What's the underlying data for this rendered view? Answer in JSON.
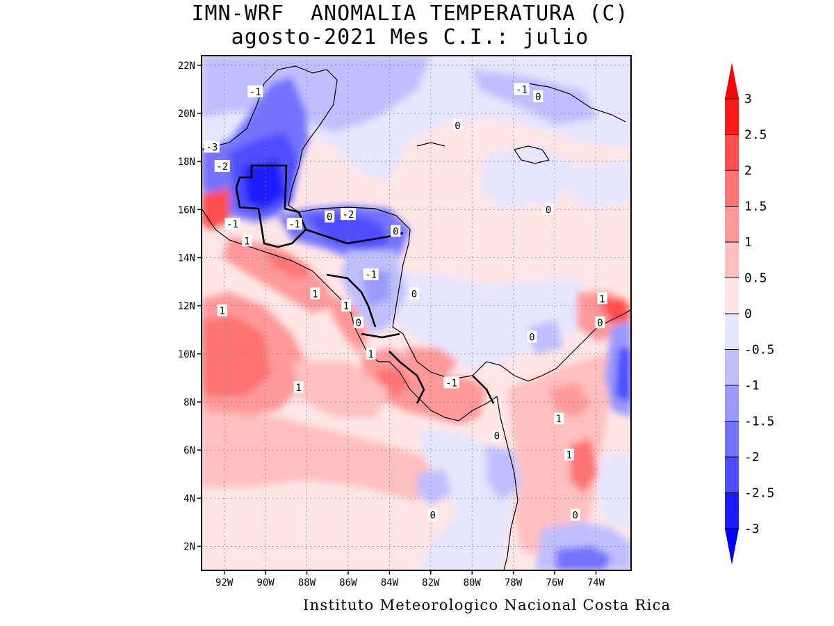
{
  "title": {
    "line1": "IMN-WRF  ANOMALIA TEMPERATURA (C)",
    "line2": "agosto-2021 Mes C.I.: julio"
  },
  "footer": "Instituto Meteorologico Nacional Costa Rica",
  "axes": {
    "lat_ticks": [
      "22N",
      "20N",
      "18N",
      "16N",
      "14N",
      "12N",
      "10N",
      "8N",
      "6N",
      "4N",
      "2N"
    ],
    "lon_ticks": [
      "92W",
      "90W",
      "88W",
      "86W",
      "84W",
      "82W",
      "80W",
      "78W",
      "76W",
      "74W"
    ]
  },
  "colorbar": {
    "labels": [
      "3",
      "2.5",
      "2",
      "1.5",
      "1",
      "0.5",
      "0",
      "-0.5",
      "-1",
      "-1.5",
      "-2",
      "-2.5",
      "-3"
    ],
    "colors": [
      "#ff1a1a",
      "#ff4d4d",
      "#ff7373",
      "#ff9999",
      "#ffbfbf",
      "#ffe6e6",
      "#e6e6ff",
      "#bfbfff",
      "#9999ff",
      "#7373ff",
      "#4d4dff",
      "#1a1aff"
    ],
    "over_color": "#ff0000",
    "under_color": "#0000ff"
  },
  "contour_labels": [
    {
      "text": "-1",
      "lon": -90.5,
      "lat": 20.9
    },
    {
      "text": "-3",
      "lon": -92.6,
      "lat": 18.6
    },
    {
      "text": "-2",
      "lon": -92.1,
      "lat": 17.8
    },
    {
      "text": "-1",
      "lon": -91.6,
      "lat": 15.4
    },
    {
      "text": "-1",
      "lon": -88.6,
      "lat": 15.4
    },
    {
      "text": "0",
      "lon": -86.9,
      "lat": 15.7
    },
    {
      "text": "-2",
      "lon": -86.0,
      "lat": 15.8
    },
    {
      "text": "0",
      "lon": -83.7,
      "lat": 15.1
    },
    {
      "text": "1",
      "lon": -90.9,
      "lat": 14.7
    },
    {
      "text": "-1",
      "lon": -84.9,
      "lat": 13.3
    },
    {
      "text": "0",
      "lon": -82.8,
      "lat": 12.5
    },
    {
      "text": "1",
      "lon": -87.6,
      "lat": 12.5
    },
    {
      "text": "1",
      "lon": -86.1,
      "lat": 12.0
    },
    {
      "text": "1",
      "lon": -92.1,
      "lat": 11.8
    },
    {
      "text": "0",
      "lon": -85.5,
      "lat": 11.3
    },
    {
      "text": "1",
      "lon": -84.9,
      "lat": 10.0
    },
    {
      "text": "1",
      "lon": -88.4,
      "lat": 8.6
    },
    {
      "text": "-1",
      "lon": -81.0,
      "lat": 8.8
    },
    {
      "text": "0",
      "lon": -77.1,
      "lat": 10.7
    },
    {
      "text": "1",
      "lon": -73.7,
      "lat": 12.3
    },
    {
      "text": "0",
      "lon": -73.8,
      "lat": 11.3
    },
    {
      "text": "1",
      "lon": -75.8,
      "lat": 7.3
    },
    {
      "text": "0",
      "lon": -78.8,
      "lat": 6.6
    },
    {
      "text": "1",
      "lon": -75.3,
      "lat": 5.8
    },
    {
      "text": "0",
      "lon": -75.0,
      "lat": 3.3
    },
    {
      "text": "0",
      "lon": -81.9,
      "lat": 3.3
    },
    {
      "text": "-1",
      "lon": -77.6,
      "lat": 21.0
    },
    {
      "text": "0",
      "lon": -76.8,
      "lat": 20.7
    },
    {
      "text": "0",
      "lon": -80.7,
      "lat": 19.5
    },
    {
      "text": "0",
      "lon": -76.3,
      "lat": 16.0
    }
  ]
}
